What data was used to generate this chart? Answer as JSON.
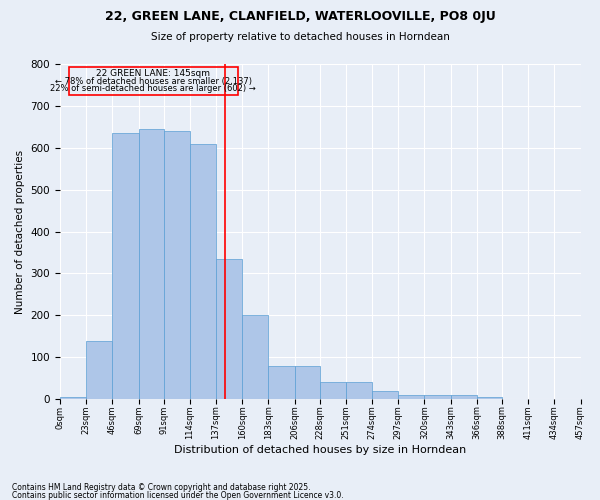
{
  "title1": "22, GREEN LANE, CLANFIELD, WATERLOOVILLE, PO8 0JU",
  "title2": "Size of property relative to detached houses in Horndean",
  "xlabel": "Distribution of detached houses by size in Horndean",
  "ylabel": "Number of detached properties",
  "footnote1": "Contains HM Land Registry data © Crown copyright and database right 2025.",
  "footnote2": "Contains public sector information licensed under the Open Government Licence v3.0.",
  "annotation_title": "22 GREEN LANE: 145sqm",
  "annotation_line1": "← 78% of detached houses are smaller (2,137)",
  "annotation_line2": "22% of semi-detached houses are larger (602) →",
  "bar_edges": [
    0,
    23,
    46,
    69,
    91,
    114,
    137,
    160,
    183,
    206,
    228,
    251,
    274,
    297,
    320,
    343,
    366,
    388,
    411,
    434,
    457
  ],
  "bar_heights": [
    5,
    140,
    635,
    645,
    640,
    610,
    335,
    200,
    80,
    80,
    40,
    40,
    20,
    10,
    10,
    10,
    5,
    0,
    0,
    0
  ],
  "bar_color": "#aec6e8",
  "bar_edgecolor": "#5a9fd4",
  "vline_color": "red",
  "vline_x": 145,
  "background_color": "#e8eef7",
  "grid_color": "white",
  "ylim": [
    0,
    800
  ],
  "yticks": [
    0,
    100,
    200,
    300,
    400,
    500,
    600,
    700,
    800
  ]
}
